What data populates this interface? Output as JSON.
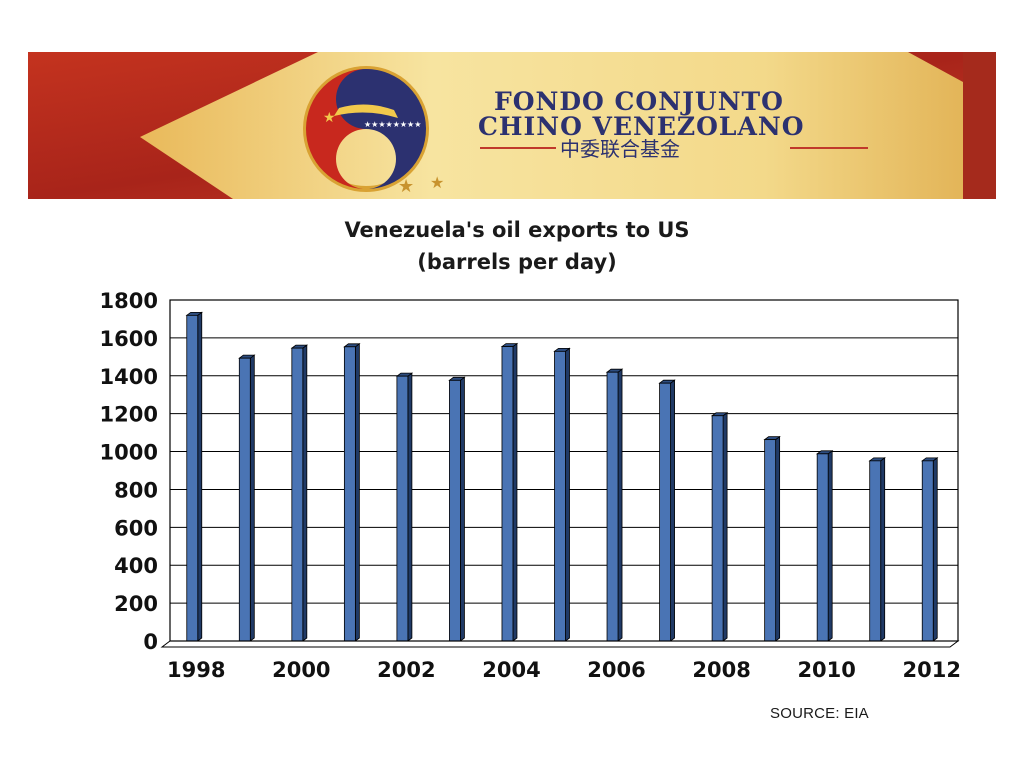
{
  "banner": {
    "title_line1": "FONDO CONJUNTO",
    "title_line2": "CHINO VENEZOLANO",
    "subtitle_cn": "中委联合基金",
    "colors": {
      "red": "#b8271c",
      "yellow": "#f0d27a",
      "gold": "#d9a233",
      "navy": "#2c3170",
      "rule_red": "#c0392b"
    }
  },
  "chart_data": {
    "type": "bar",
    "title": [
      "Venezuela's oil exports to US",
      "(barrels per day)"
    ],
    "xlabel": "",
    "ylabel": "",
    "categories": [
      "1998",
      "1999",
      "2000",
      "2001",
      "2002",
      "2003",
      "2004",
      "2005",
      "2006",
      "2007",
      "2008",
      "2009",
      "2010",
      "2011",
      "2012"
    ],
    "values": [
      1719,
      1493,
      1546,
      1553,
      1398,
      1376,
      1554,
      1529,
      1419,
      1361,
      1189,
      1063,
      988,
      951,
      951
    ],
    "x_tick_labels": [
      "1998",
      "2000",
      "2002",
      "2004",
      "2006",
      "2008",
      "2010",
      "2012"
    ],
    "y_ticks": [
      0,
      200,
      400,
      600,
      800,
      1000,
      1200,
      1400,
      1600,
      1800
    ],
    "ylim": [
      0,
      1800
    ],
    "grid": true,
    "legend": "none",
    "colors": {
      "bar": "#4a74b4",
      "bar_side": "#203a66",
      "bar_top": "#2d4d80",
      "grid": "#000000"
    }
  },
  "source": "SOURCE: EIA"
}
